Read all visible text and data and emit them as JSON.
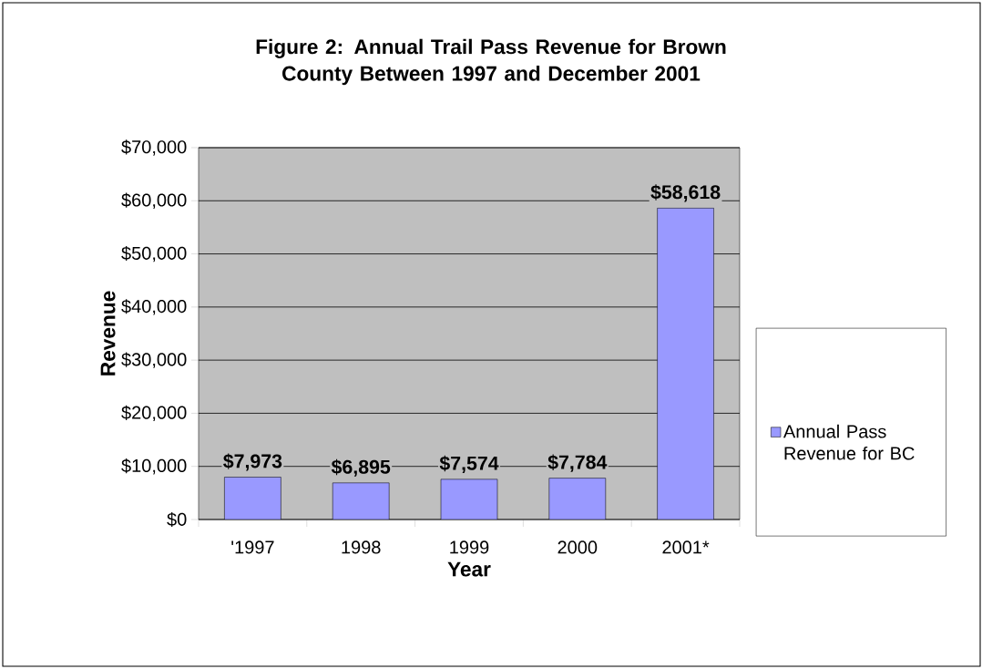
{
  "chart_data": {
    "type": "bar",
    "title": "Figure 2:  Annual Trail Pass Revenue for Brown County Between 1997 and December 2001",
    "xlabel": "Year",
    "ylabel": "Revenue",
    "categories": [
      "'1997",
      "1998",
      "1999",
      "2000",
      "2001*"
    ],
    "series": [
      {
        "name": "Annual Pass Revenue for BC",
        "color": "#9999ff",
        "values": [
          7973,
          6895,
          7574,
          7784,
          58618
        ],
        "value_labels": [
          "$7,973",
          "$6,895",
          "$7,574",
          "$7,784",
          "$58,618"
        ]
      }
    ],
    "ylim": [
      0,
      70000
    ],
    "yticks": [
      {
        "value": 0,
        "label": "$0"
      },
      {
        "value": 10000,
        "label": "$10,000"
      },
      {
        "value": 20000,
        "label": "$20,000"
      },
      {
        "value": 30000,
        "label": "$30,000"
      },
      {
        "value": 40000,
        "label": "$40,000"
      },
      {
        "value": 50000,
        "label": "$50,000"
      },
      {
        "value": 60000,
        "label": "$60,000"
      },
      {
        "value": 70000,
        "label": "$70,000"
      }
    ],
    "grid": "y",
    "legend": "right"
  }
}
